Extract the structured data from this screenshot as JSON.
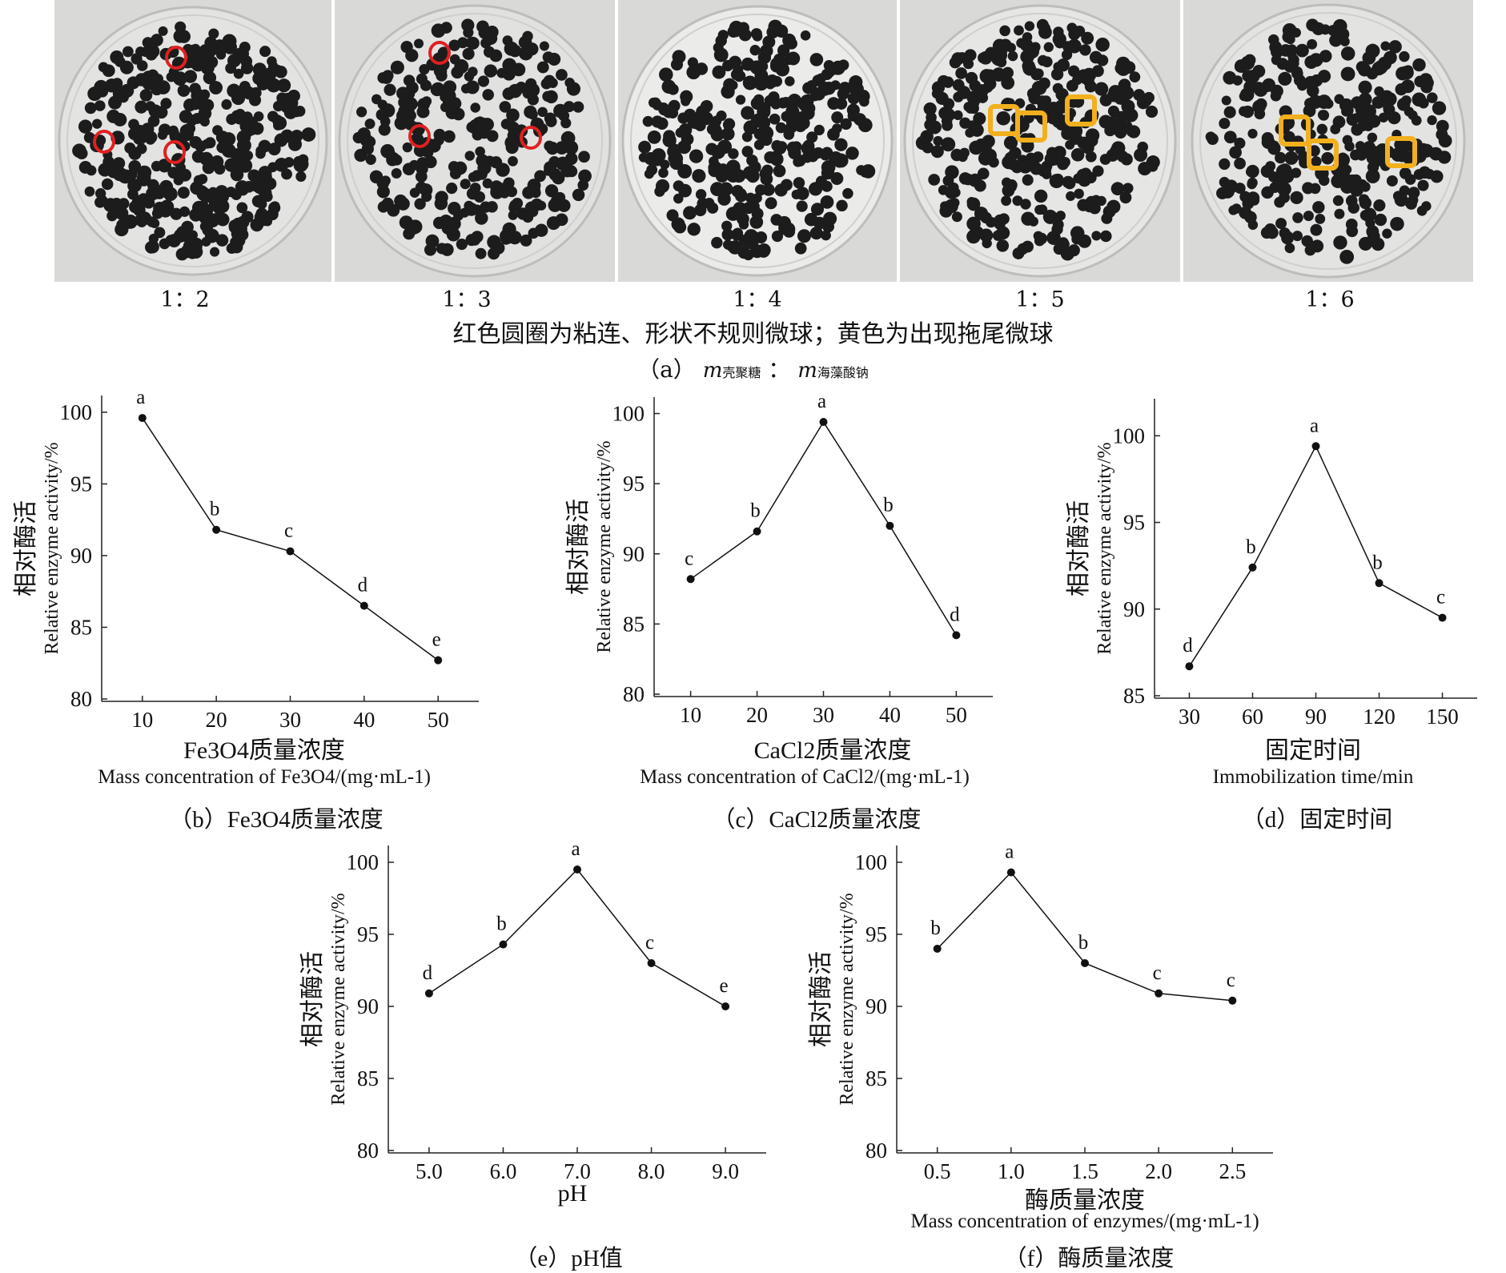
{
  "panel_a": {
    "ratios": [
      "1：2",
      "1：3",
      "1：4",
      "1：5",
      "1：6"
    ],
    "note": "红色圆圈为粘连、形状不规则微球；黄色为出现拖尾微球",
    "caption_prefix": "（a）",
    "m1": "m",
    "sub1": "壳聚糖",
    "colon": "：",
    "m2": "m",
    "sub2": "海藻酸钠",
    "colors": {
      "irregular_marker": "#e02020",
      "tailing_marker": "#f2b01e",
      "bead": "#1c1c1c",
      "dish_bg": "#d9dad8"
    }
  },
  "chart_data": [
    {
      "id": "b",
      "type": "line",
      "caption_prefix": "（b）",
      "caption_main": "Fe3O4质量浓度",
      "xlabel_zh": "Fe3O4质量浓度",
      "xlabel_en": "Mass concentration of Fe3O4/(mg·mL-1)",
      "ylabel_zh": "相对酶活",
      "ylabel_en": "Relative enzyme activity/%",
      "x_ticks": [
        "10",
        "20",
        "30",
        "40",
        "50"
      ],
      "y_ticks": [
        "80",
        "85",
        "90",
        "95",
        "100"
      ],
      "ylim": [
        80,
        101
      ],
      "x": [
        10,
        20,
        30,
        40,
        50
      ],
      "y": [
        99.6,
        91.8,
        90.3,
        86.5,
        82.7
      ],
      "letters": [
        "a",
        "b",
        "c",
        "d",
        "e"
      ]
    },
    {
      "id": "c",
      "type": "line",
      "caption_prefix": "（c）",
      "caption_main": "CaCl2质量浓度",
      "xlabel_zh": "CaCl2质量浓度",
      "xlabel_en": "Mass concentration of CaCl2/(mg·mL-1)",
      "ylabel_zh": "相对酶活",
      "ylabel_en": "Relative enzyme activity/%",
      "x_ticks": [
        "10",
        "20",
        "30",
        "40",
        "50"
      ],
      "y_ticks": [
        "80",
        "85",
        "90",
        "95",
        "100"
      ],
      "ylim": [
        80,
        101
      ],
      "x": [
        10,
        20,
        30,
        40,
        50
      ],
      "y": [
        88.2,
        91.6,
        99.4,
        92.0,
        84.2
      ],
      "letters": [
        "c",
        "b",
        "a",
        "b",
        "d"
      ]
    },
    {
      "id": "d",
      "type": "line",
      "caption_prefix": "（d）",
      "caption_main": "固定时间",
      "xlabel_zh": "固定时间",
      "xlabel_en": "Immobilization time/min",
      "ylabel_zh": "相对酶活",
      "ylabel_en": "Relative enzyme activity/%",
      "x_ticks": [
        "30",
        "60",
        "90",
        "120",
        "150"
      ],
      "y_ticks": [
        "85",
        "90",
        "95",
        "100"
      ],
      "ylim": [
        85,
        102
      ],
      "x": [
        30,
        60,
        90,
        120,
        150
      ],
      "y": [
        86.7,
        92.4,
        99.4,
        91.5,
        89.5
      ],
      "letters": [
        "d",
        "b",
        "a",
        "b",
        "c"
      ]
    },
    {
      "id": "e",
      "type": "line",
      "caption_prefix": "（e）",
      "caption_main": "pH值",
      "xlabel_zh": "",
      "xlabel_en": "pH",
      "ylabel_zh": "相对酶活",
      "ylabel_en": "Relative enzyme activity/%",
      "x_ticks": [
        "5.0",
        "6.0",
        "7.0",
        "8.0",
        "9.0"
      ],
      "y_ticks": [
        "80",
        "85",
        "90",
        "95",
        "100"
      ],
      "ylim": [
        80,
        101
      ],
      "x": [
        5.0,
        6.0,
        7.0,
        8.0,
        9.0
      ],
      "y": [
        90.9,
        94.3,
        99.5,
        93.0,
        90.0
      ],
      "letters": [
        "d",
        "b",
        "a",
        "c",
        "e"
      ]
    },
    {
      "id": "f",
      "type": "line",
      "caption_prefix": "（f）",
      "caption_main": "酶质量浓度",
      "xlabel_zh": "酶质量浓度",
      "xlabel_en": "Mass concentration of enzymes/(mg·mL-1)",
      "ylabel_zh": "相对酶活",
      "ylabel_en": "Relative enzyme activity/%",
      "x_ticks": [
        "0.5",
        "1.0",
        "1.5",
        "2.0",
        "2.5"
      ],
      "y_ticks": [
        "80",
        "85",
        "90",
        "95",
        "100"
      ],
      "ylim": [
        80,
        101
      ],
      "x": [
        0.5,
        1.0,
        1.5,
        2.0,
        2.5
      ],
      "y": [
        94.0,
        99.3,
        93.0,
        90.9,
        90.4
      ],
      "letters": [
        "b",
        "a",
        "b",
        "c",
        "c"
      ]
    }
  ]
}
